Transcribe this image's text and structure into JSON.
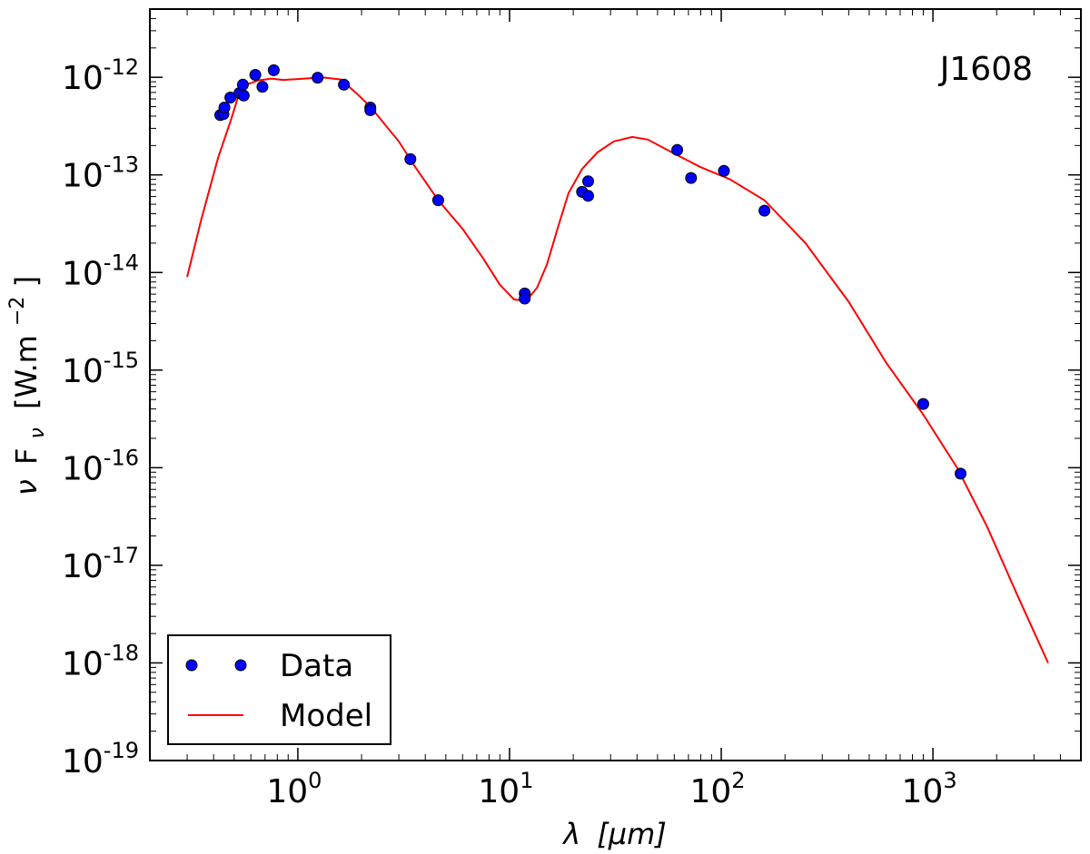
{
  "chart_data": {
    "type": "scatter",
    "title": "",
    "annotation": "J1608",
    "xlabel": "λ [μm]",
    "ylabel": "ν F_ν [W.m^-2]",
    "ylabel_parts": {
      "nu": "ν",
      "F": "F",
      "sub": "ν",
      "unit_open": "[W.m",
      "unit_exp": "−2",
      "unit_close": "]"
    },
    "xlabel_parts": {
      "lambda": "λ",
      "unit": "[μm]"
    },
    "xscale": "log",
    "yscale": "log",
    "xlim": [
      0.2,
      5000
    ],
    "ylim": [
      1e-19,
      5e-12
    ],
    "x_ticks": [
      {
        "value": 1,
        "base": "10",
        "exp": "0"
      },
      {
        "value": 10,
        "base": "10",
        "exp": "1"
      },
      {
        "value": 100,
        "base": "10",
        "exp": "2"
      },
      {
        "value": 1000,
        "base": "10",
        "exp": "3"
      }
    ],
    "y_ticks": [
      {
        "value": 1e-19,
        "base": "10",
        "exp": "-19"
      },
      {
        "value": 1e-18,
        "base": "10",
        "exp": "-18"
      },
      {
        "value": 1e-17,
        "base": "10",
        "exp": "-17"
      },
      {
        "value": 1e-16,
        "base": "10",
        "exp": "-16"
      },
      {
        "value": 1e-15,
        "base": "10",
        "exp": "-15"
      },
      {
        "value": 1e-14,
        "base": "10",
        "exp": "-14"
      },
      {
        "value": 1e-13,
        "base": "10",
        "exp": "-13"
      },
      {
        "value": 1e-12,
        "base": "10",
        "exp": "-12"
      }
    ],
    "legend": {
      "placement": "lower-left",
      "entries": [
        {
          "label": "Data",
          "kind": "marker",
          "color": "#0000ff"
        },
        {
          "label": "Model",
          "kind": "line",
          "color": "#ff0000"
        }
      ]
    },
    "series": [
      {
        "name": "Data",
        "kind": "scatter",
        "color": "#0000ff",
        "edge_color": "#000000",
        "points": [
          [
            0.43,
            4.1e-13
          ],
          [
            0.445,
            4.2e-13
          ],
          [
            0.45,
            4.9e-13
          ],
          [
            0.48,
            6.2e-13
          ],
          [
            0.53,
            6.9e-13
          ],
          [
            0.555,
            6.5e-13
          ],
          [
            0.55,
            8.4e-13
          ],
          [
            0.63,
            1.06e-12
          ],
          [
            0.68,
            8e-13
          ],
          [
            0.77,
            1.18e-12
          ],
          [
            1.24,
            9.9e-13
          ],
          [
            1.65,
            8.4e-13
          ],
          [
            2.2,
            4.9e-13
          ],
          [
            2.2,
            4.6e-13
          ],
          [
            3.4,
            1.45e-13
          ],
          [
            4.6,
            5.5e-14
          ],
          [
            11.8,
            6.1e-15
          ],
          [
            11.8,
            5.4e-15
          ],
          [
            22,
            6.7e-14
          ],
          [
            23.5,
            6.1e-14
          ],
          [
            23.5,
            8.6e-14
          ],
          [
            62,
            1.8e-13
          ],
          [
            72,
            9.3e-14
          ],
          [
            103,
            1.1e-13
          ],
          [
            160,
            4.3e-14
          ],
          [
            900,
            4.5e-16
          ],
          [
            1350,
            8.7e-17
          ]
        ]
      },
      {
        "name": "Model",
        "kind": "line",
        "color": "#ff0000",
        "points": [
          [
            0.3,
            9e-15
          ],
          [
            0.35,
            3.5e-14
          ],
          [
            0.42,
            1.5e-13
          ],
          [
            0.48,
            3.5e-13
          ],
          [
            0.53,
            7e-13
          ],
          [
            0.58,
            8.5e-13
          ],
          [
            0.65,
            9.3e-13
          ],
          [
            0.75,
            9.7e-13
          ],
          [
            0.85,
            9.4e-13
          ],
          [
            1.0,
            9.6e-13
          ],
          [
            1.3,
            1e-12
          ],
          [
            1.6,
            9.5e-13
          ],
          [
            1.9,
            6.8e-13
          ],
          [
            2.2,
            5e-13
          ],
          [
            3.0,
            2.2e-13
          ],
          [
            3.5,
            1.3e-13
          ],
          [
            4.6,
            5.5e-14
          ],
          [
            6.0,
            2.8e-14
          ],
          [
            7.5,
            1.4e-14
          ],
          [
            9.0,
            7.5e-15
          ],
          [
            10.5,
            5.3e-15
          ],
          [
            12.0,
            5.1e-15
          ],
          [
            13.5,
            7e-15
          ],
          [
            15.0,
            1.2e-14
          ],
          [
            17.0,
            3e-14
          ],
          [
            19.0,
            6.5e-14
          ],
          [
            22.0,
            1.15e-13
          ],
          [
            26.0,
            1.7e-13
          ],
          [
            31.0,
            2.2e-13
          ],
          [
            38.0,
            2.45e-13
          ],
          [
            45.0,
            2.3e-13
          ],
          [
            60.0,
            1.65e-13
          ],
          [
            80.0,
            1.2e-13
          ],
          [
            110.0,
            9e-14
          ],
          [
            160.0,
            5.5e-14
          ],
          [
            250.0,
            2e-14
          ],
          [
            400.0,
            5e-15
          ],
          [
            600.0,
            1.2e-15
          ],
          [
            900.0,
            3.5e-16
          ],
          [
            1300.0,
            1e-16
          ],
          [
            1800.0,
            2.5e-17
          ],
          [
            2500.0,
            5e-18
          ],
          [
            3500.0,
            1e-18
          ]
        ]
      }
    ]
  }
}
